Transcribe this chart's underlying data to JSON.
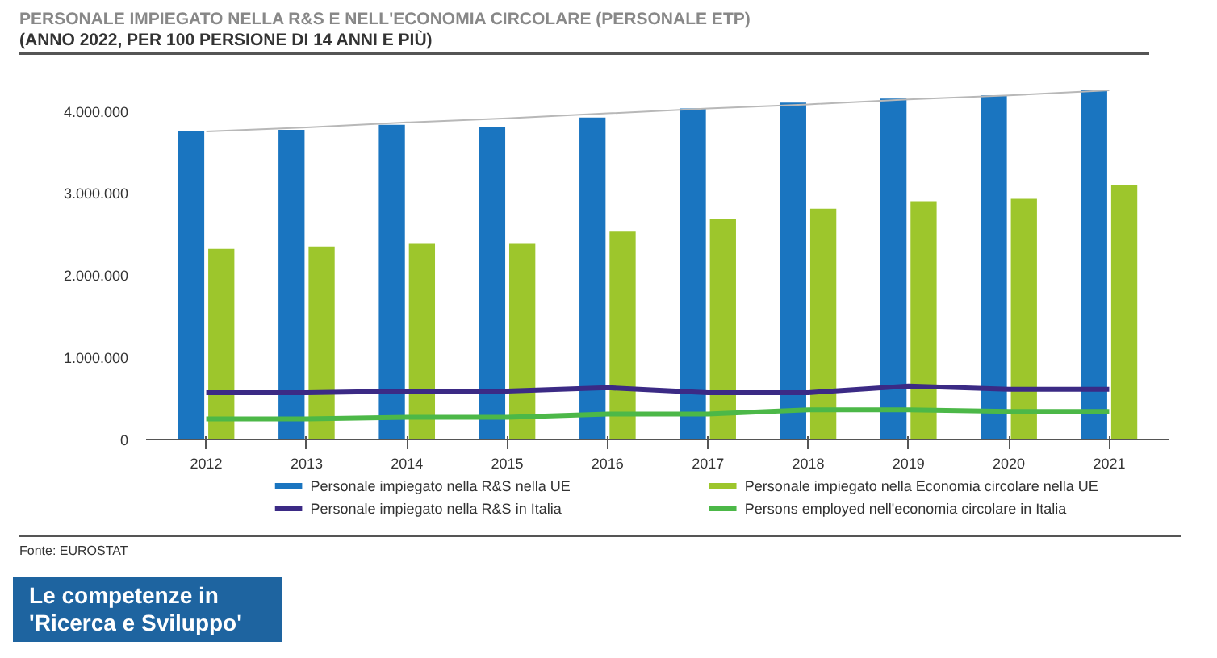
{
  "chart_data": {
    "type": "bar",
    "title": "PERSONALE IMPIEGATO NELLA R&S E NELL'ECONOMIA CIRCOLARE (PERSONALE ETP)",
    "subtitle": "(ANNO 2022, PER 100 PERSIONE DI 14 ANNI E PIÙ)",
    "categories": [
      "2012",
      "2013",
      "2014",
      "2015",
      "2016",
      "2017",
      "2018",
      "2019",
      "2020",
      "2021"
    ],
    "series": [
      {
        "name": "Personale impiegato nella R&S nella UE",
        "color": "#1a75c0",
        "values": [
          3750000,
          3770000,
          3830000,
          3810000,
          3920000,
          4030000,
          4100000,
          4150000,
          4190000,
          4250000
        ]
      },
      {
        "name": "Personale impiegato nella Economia circolare nella UE",
        "color": "#9dc62c",
        "values": [
          2320000,
          2350000,
          2390000,
          2390000,
          2530000,
          2680000,
          2810000,
          2900000,
          2930000,
          3100000
        ]
      },
      {
        "name": "Personale impiegato nella R&S in Italia",
        "color": "#3b2a85",
        "type": "line",
        "values": [
          570000,
          570000,
          590000,
          590000,
          630000,
          570000,
          570000,
          650000,
          610000,
          610000
        ]
      },
      {
        "name": "Persons employed nell'economia circolare in Italia",
        "color": "#4cb848",
        "type": "line",
        "values": [
          250000,
          250000,
          270000,
          270000,
          310000,
          310000,
          360000,
          360000,
          340000,
          340000
        ]
      },
      {
        "color": "#b8b8b8",
        "type": "line",
        "values": [
          3750000,
          3800000,
          3860000,
          3910000,
          3970000,
          4030000,
          4080000,
          4140000,
          4190000,
          4250000
        ]
      }
    ],
    "ylim": [
      0,
      4300000
    ],
    "yticks": [
      0,
      {
        "value": 1000000,
        "label": "1.000.000"
      },
      {
        "value": 2000000,
        "label": "2.000.000"
      },
      {
        "value": 3000000,
        "label": "3.000.000"
      },
      {
        "value": 4000000,
        "label": "4.000.000"
      }
    ],
    "grid": false,
    "legend": "bottom",
    "annotations": [
      "Fonte: EUROSTAT",
      "Le competenze in 'Ricerca e Sviluppo'"
    ]
  }
}
